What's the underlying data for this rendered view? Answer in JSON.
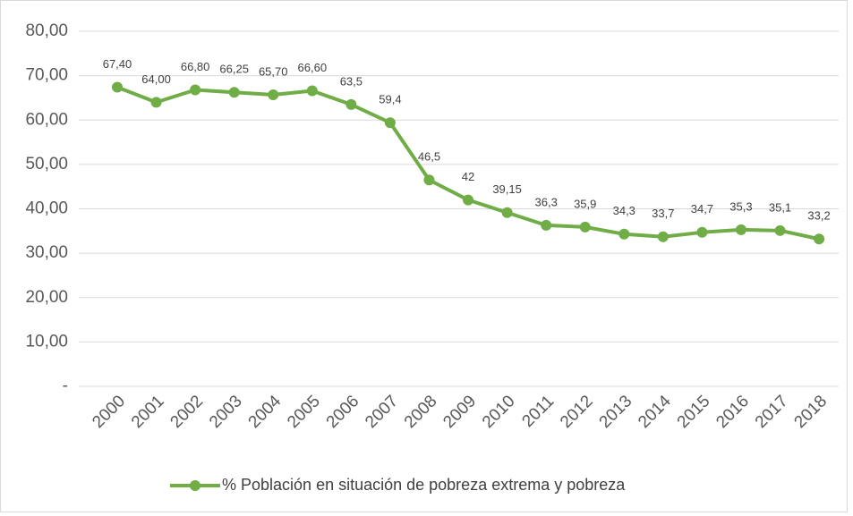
{
  "chart_data": {
    "type": "line",
    "categories": [
      "2000",
      "2001",
      "2002",
      "2003",
      "2004",
      "2005",
      "2006",
      "2007",
      "2008",
      "2009",
      "2010",
      "2011",
      "2012",
      "2013",
      "2014",
      "2015",
      "2016",
      "2017",
      "2018"
    ],
    "series": [
      {
        "name": "% Población en situación de pobreza extrema y pobreza",
        "color": "#70ad47",
        "values": [
          67.4,
          64.0,
          66.8,
          66.25,
          65.7,
          66.6,
          63.5,
          59.4,
          46.5,
          42,
          39.15,
          36.3,
          35.9,
          34.3,
          33.7,
          34.7,
          35.3,
          35.1,
          33.2
        ],
        "value_labels": [
          "67,40",
          "64,00",
          "66,80",
          "66,25",
          "65,70",
          "66,60",
          "63,5",
          "59,4",
          "46,5",
          "42",
          "39,15",
          "36,3",
          "35,9",
          "34,3",
          "33,7",
          "34,7",
          "35,3",
          "35,1",
          "33,2"
        ]
      }
    ],
    "ylim": [
      0,
      80
    ],
    "yticks": [
      {
        "value": 0,
        "label": "-"
      },
      {
        "value": 10,
        "label": "10,00"
      },
      {
        "value": 20,
        "label": "20,00"
      },
      {
        "value": 30,
        "label": "30,00"
      },
      {
        "value": 40,
        "label": "40,00"
      },
      {
        "value": 50,
        "label": "50,00"
      },
      {
        "value": 60,
        "label": "60,00"
      },
      {
        "value": 70,
        "label": "70,00"
      },
      {
        "value": 80,
        "label": "80,00"
      }
    ],
    "grid": true,
    "legend": "bottom"
  }
}
